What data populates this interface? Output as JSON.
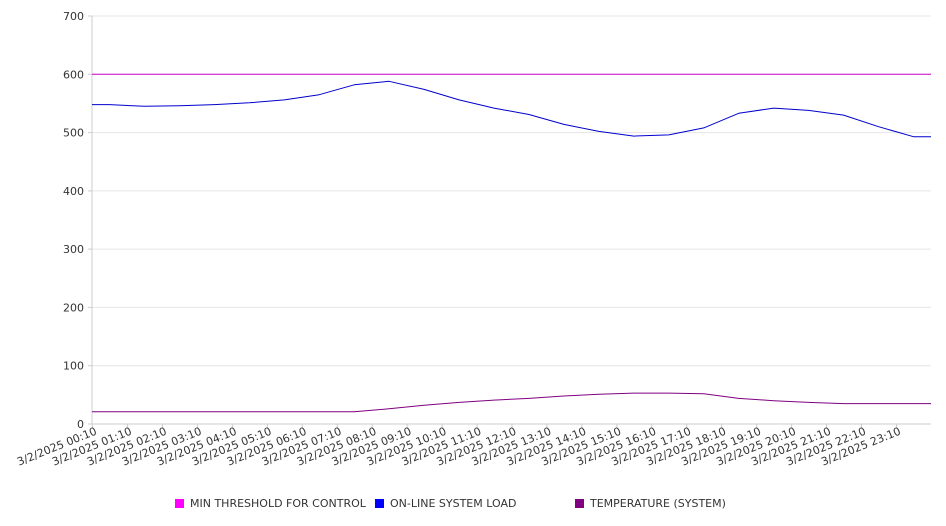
{
  "chart_data": {
    "type": "line",
    "title": "",
    "xlabel": "",
    "ylabel": "",
    "ylim": [
      0,
      700
    ],
    "yticks": [
      "0",
      "100",
      "200",
      "300",
      "400",
      "500",
      "600",
      "700"
    ],
    "grid": true,
    "legend_position": "bottom",
    "categories": [
      "3/2/2025 00:10",
      "3/2/2025 01:10",
      "3/2/2025 02:10",
      "3/2/2025 03:10",
      "3/2/2025 04:10",
      "3/2/2025 05:10",
      "3/2/2025 06:10",
      "3/2/2025 07:10",
      "3/2/2025 08:10",
      "3/2/2025 09:10",
      "3/2/2025 10:10",
      "3/2/2025 11:10",
      "3/2/2025 12:10",
      "3/2/2025 13:10",
      "3/2/2025 14:10",
      "3/2/2025 15:10",
      "3/2/2025 16:10",
      "3/2/2025 17:10",
      "3/2/2025 18:10",
      "3/2/2025 19:10",
      "3/2/2025 20:10",
      "3/2/2025 21:10",
      "3/2/2025 22:10",
      "3/2/2025 23:10"
    ],
    "series": [
      {
        "name": "MIN THRESHOLD FOR CONTROL",
        "color": "#cc00cc",
        "values": [
          600,
          600,
          600,
          600,
          600,
          600,
          600,
          600,
          600,
          600,
          600,
          600,
          600,
          600,
          600,
          600,
          600,
          600,
          600,
          600,
          600,
          600,
          600,
          600
        ]
      },
      {
        "name": "ON-LINE SYSTEM LOAD",
        "color": "#0000cc",
        "values": [
          548,
          545,
          546,
          548,
          551,
          556,
          565,
          582,
          588,
          574,
          556,
          542,
          531,
          514,
          502,
          494,
          496,
          508,
          533,
          542,
          538,
          530,
          510,
          493
        ]
      },
      {
        "name": "TEMPERATURE (SYSTEM)",
        "color": "#800080",
        "values": [
          21,
          21,
          21,
          21,
          21,
          21,
          21,
          21,
          26,
          32,
          37,
          41,
          44,
          48,
          51,
          53,
          53,
          52,
          44,
          40,
          37,
          35,
          35,
          35
        ]
      }
    ]
  }
}
